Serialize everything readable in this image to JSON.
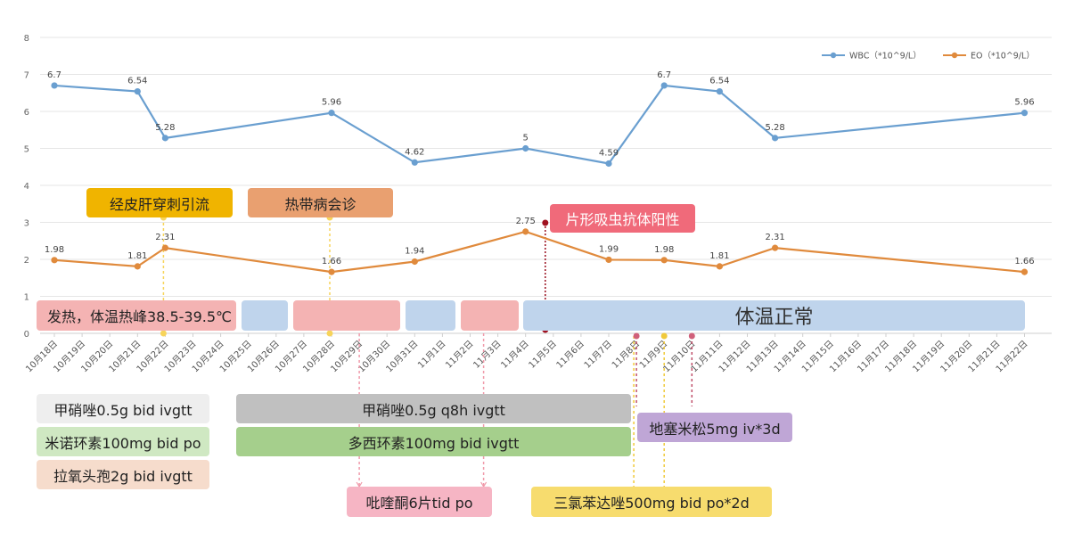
{
  "chart_data": {
    "type": "line",
    "x": [
      "10月18日",
      "10月19日",
      "10月20日",
      "10月21日",
      "10月22日",
      "10月23日",
      "10月24日",
      "10月25日",
      "10月26日",
      "10月27日",
      "10月28日",
      "10月29日",
      "10月30日",
      "10月31日",
      "11月1日",
      "11月2日",
      "11月3日",
      "11月4日",
      "11月5日",
      "11月6日",
      "11月7日",
      "11月8日",
      "11月9日",
      "11月10日",
      "11月11日",
      "11月12日",
      "11月13日",
      "11月14日",
      "11月15日",
      "11月16日",
      "11月17日",
      "11月18日",
      "11月19日",
      "11月20日",
      "11月21日",
      "11月22日"
    ],
    "ylim": [
      0,
      8
    ],
    "yticks": [
      "0",
      "1",
      "2",
      "3",
      "4",
      "5",
      "6",
      "7",
      "8"
    ],
    "grid": true,
    "legend_position": "top-right",
    "series": [
      {
        "name": "WBC（*10^9/L）",
        "color": "#6a9fd0",
        "points": [
          {
            "x": "10月18日",
            "y": 6.7,
            "label": "6.7"
          },
          {
            "x": "10月21日",
            "y": 6.54,
            "label": "6.54"
          },
          {
            "x": "10月22日",
            "y": 5.28,
            "label": "5.28"
          },
          {
            "x": "10月28日",
            "y": 5.96,
            "label": "5.96"
          },
          {
            "x": "10月31日",
            "y": 4.62,
            "label": "4.62"
          },
          {
            "x": "11月4日",
            "y": 5,
            "label": "5"
          },
          {
            "x": "11月7日",
            "y": 4.59,
            "label": "4.59"
          },
          {
            "x": "11月9日",
            "y": 6.7,
            "label": "6.7"
          },
          {
            "x": "11月11日",
            "y": 6.54,
            "label": "6.54"
          },
          {
            "x": "11月13日",
            "y": 5.28,
            "label": "5.28"
          },
          {
            "x": "11月22日",
            "y": 5.96,
            "label": "5.96"
          }
        ]
      },
      {
        "name": "EO（*10^9/L）",
        "color": "#e08a3c",
        "points": [
          {
            "x": "10月18日",
            "y": 1.98,
            "label": "1.98"
          },
          {
            "x": "10月21日",
            "y": 1.81,
            "label": "1.81"
          },
          {
            "x": "10月22日",
            "y": 2.31,
            "label": "2.31"
          },
          {
            "x": "10月28日",
            "y": 1.66,
            "label": "1.66"
          },
          {
            "x": "10月31日",
            "y": 1.94,
            "label": "1.94"
          },
          {
            "x": "11月4日",
            "y": 2.75,
            "label": "2.75"
          },
          {
            "x": "11月7日",
            "y": 1.99,
            "label": "1.99"
          },
          {
            "x": "11月9日",
            "y": 1.98,
            "label": "1.98"
          },
          {
            "x": "11月11日",
            "y": 1.81,
            "label": "1.81"
          },
          {
            "x": "11月13日",
            "y": 2.31,
            "label": "2.31"
          },
          {
            "x": "11月22日",
            "y": 1.66,
            "label": "1.66"
          }
        ]
      }
    ]
  },
  "annotations": {
    "biopsy": "经皮肝穿刺引流",
    "consult": "热带病会诊",
    "antibody": "片形吸虫抗体阳性",
    "fever": "发热，体温热峰38.5-39.5℃",
    "normal": "体温正常",
    "metronidazole_bid": "甲硝唑0.5g bid ivgtt",
    "minocycline": "米诺环素100mg bid po",
    "cefoxitin": "拉氧头孢2g bid ivgtt",
    "metronidazole_q8h": "甲硝唑0.5g q8h ivgtt",
    "doxycycline": "多西环素100mg bid ivgtt",
    "praziquantel": "吡喹酮6片tid po",
    "dexamethasone": "地塞米松5mg iv*3d",
    "triclabendazole": "三氯苯达唑500mg bid po*2d"
  },
  "colors": {
    "orange_tag": "#f0b400",
    "peach_tag": "#e9a070",
    "red_tag": "#f06a7a",
    "fever_pink": "#f4b3b3",
    "normal_blue": "#bfd4ec",
    "gray_tag": "#c0c0c0",
    "light_gray_tag": "#eeeeee",
    "green_tag": "#a5cf8c",
    "light_green_tag": "#cfe8c2",
    "light_peach_tag": "#f6dccc",
    "pink_tag": "#f6b5c4",
    "purple_tag": "#bfa6d6",
    "yellow_tag": "#f7dc6e"
  }
}
